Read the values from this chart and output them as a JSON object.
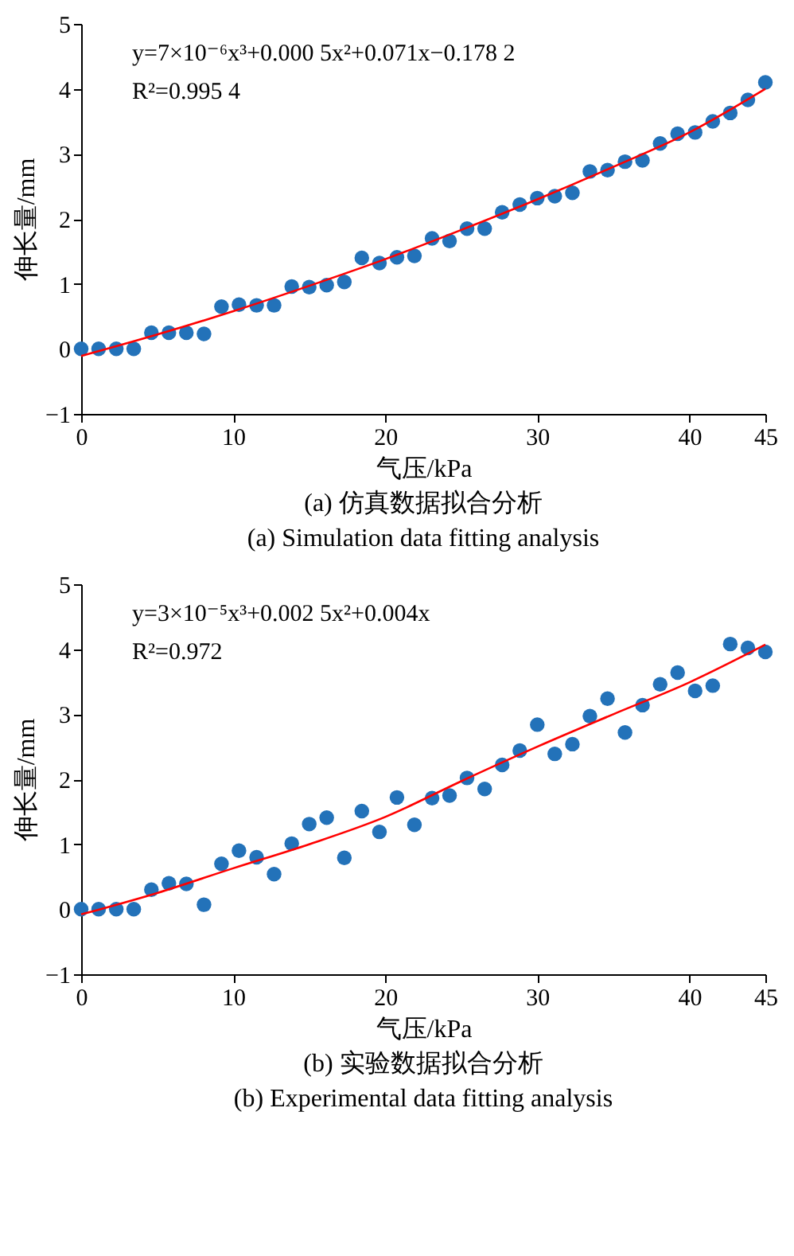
{
  "chart_data": [
    {
      "type": "scatter",
      "title": "(a) 仿真数据拟合分析",
      "subtitle": "(a) Simulation data fitting analysis",
      "xlabel": "气压/kPa",
      "ylabel": "伸长量/mm",
      "annotations": [
        "y=7×10⁻⁶x³+0.000 5x²+0.071x−0.178 2",
        "R²=0.995 4"
      ],
      "xlim": [
        0,
        45
      ],
      "ylim": [
        -1,
        5
      ],
      "xticks": [
        0,
        10,
        20,
        30,
        40,
        45
      ],
      "yticks": [
        -1,
        0,
        1,
        2,
        3,
        4,
        5
      ],
      "x": [
        0,
        1.15,
        2.31,
        3.46,
        4.62,
        5.77,
        6.92,
        8.08,
        9.23,
        10.38,
        11.54,
        12.69,
        13.85,
        15,
        16.15,
        17.31,
        18.46,
        19.62,
        20.77,
        21.92,
        23.08,
        24.23,
        25.38,
        26.54,
        27.69,
        28.85,
        30,
        31.15,
        32.31,
        33.46,
        34.62,
        35.77,
        36.92,
        38.08,
        39.23,
        40.38,
        41.54,
        42.69,
        43.85,
        45
      ],
      "series": [
        {
          "marker": "circle",
          "color": "#2372b9",
          "values": [
            0,
            0,
            0,
            0,
            0.25,
            0.25,
            0.25,
            0.23,
            0.65,
            0.68,
            0.67,
            0.67,
            0.96,
            0.95,
            0.98,
            1.03,
            1.4,
            1.32,
            1.41,
            1.43,
            1.7,
            1.66,
            1.85,
            1.85,
            2.1,
            2.22,
            2.32,
            2.35,
            2.4,
            2.73,
            2.75,
            2.88,
            2.9,
            3.16,
            3.31,
            3.33,
            3.5,
            3.63,
            3.83,
            4.1
          ]
        },
        {
          "type": "line",
          "color": "#ff0000",
          "x": [
            0,
            5,
            10,
            15,
            20,
            25,
            30,
            35,
            40,
            45
          ],
          "values": [
            -0.11,
            0.22,
            0.58,
            0.97,
            1.38,
            1.83,
            2.3,
            2.8,
            3.33,
            4.0
          ]
        }
      ]
    },
    {
      "type": "scatter",
      "title": "(b) 实验数据拟合分析",
      "subtitle": "(b) Experimental data fitting analysis",
      "xlabel": "气压/kPa",
      "ylabel": "伸长量/mm",
      "annotations": [
        "y=3×10⁻⁵x³+0.002 5x²+0.004x",
        "R²=0.972"
      ],
      "xlim": [
        0,
        45
      ],
      "ylim": [
        -1,
        5
      ],
      "xticks": [
        0,
        10,
        20,
        30,
        40,
        45
      ],
      "yticks": [
        -1,
        0,
        1,
        2,
        3,
        4,
        5
      ],
      "x": [
        0,
        1.15,
        2.31,
        3.46,
        4.62,
        5.77,
        6.92,
        8.08,
        9.23,
        10.38,
        11.54,
        12.69,
        13.85,
        15,
        16.15,
        17.31,
        18.46,
        19.62,
        20.77,
        21.92,
        23.08,
        24.23,
        25.38,
        26.54,
        27.69,
        28.85,
        30,
        31.15,
        32.31,
        33.46,
        34.62,
        35.77,
        36.92,
        38.08,
        39.23,
        40.38,
        41.54,
        42.69,
        43.85,
        45
      ],
      "series": [
        {
          "marker": "circle",
          "color": "#2372b9",
          "values": [
            0,
            0,
            0,
            0,
            0.3,
            0.4,
            0.39,
            0.07,
            0.7,
            0.9,
            0.8,
            0.54,
            1.01,
            1.31,
            1.41,
            0.79,
            1.51,
            1.19,
            1.72,
            1.3,
            1.71,
            1.75,
            2.02,
            1.85,
            2.22,
            2.44,
            2.84,
            2.39,
            2.54,
            2.97,
            3.24,
            2.72,
            3.14,
            3.46,
            3.64,
            3.36,
            3.44,
            4.08,
            4.02,
            3.96
          ]
        },
        {
          "type": "line",
          "color": "#ff0000",
          "x": [
            0,
            5,
            10,
            15,
            20,
            25,
            30,
            35,
            40,
            45
          ],
          "values": [
            -0.08,
            0.25,
            0.63,
            1.0,
            1.42,
            1.97,
            2.5,
            3.0,
            3.49,
            4.07
          ]
        }
      ]
    }
  ]
}
